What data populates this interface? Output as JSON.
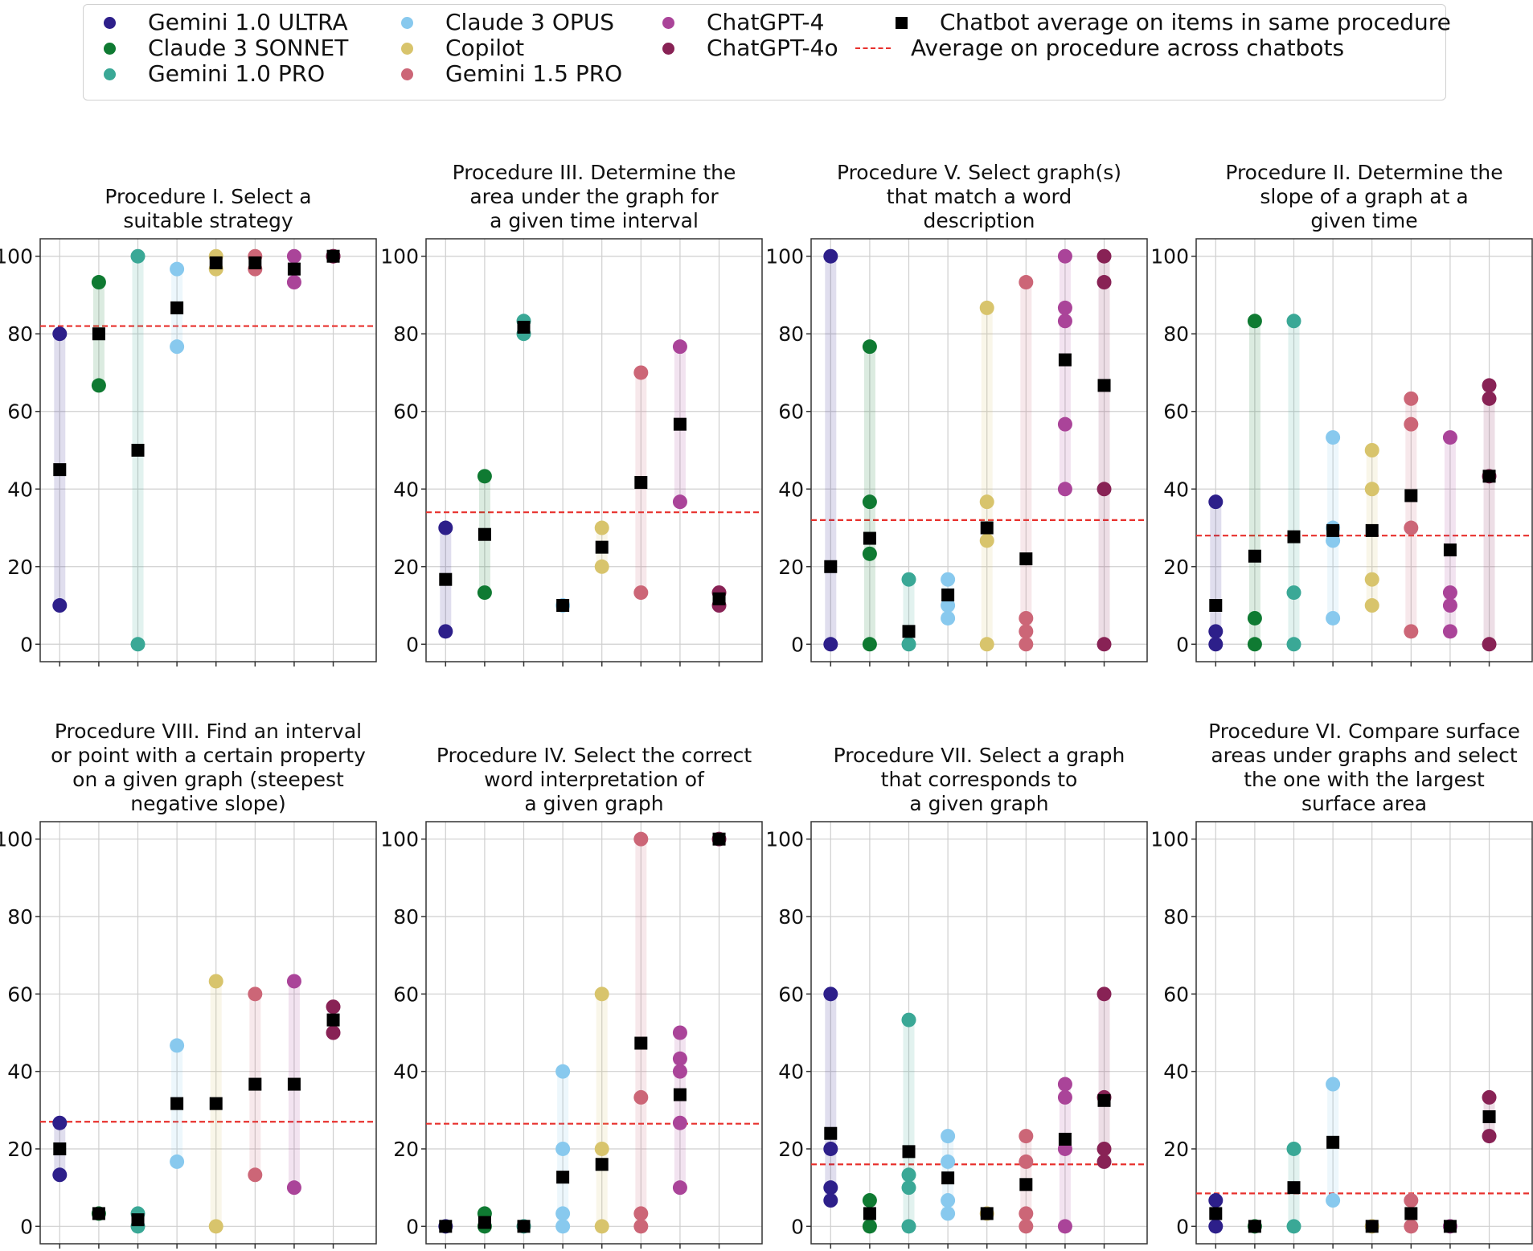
{
  "legend": {
    "series": [
      {
        "name": "Gemini 1.0 ULTRA",
        "color": "#2d1f8a"
      },
      {
        "name": "Claude 3 SONNET",
        "color": "#0f7a32"
      },
      {
        "name": "Gemini 1.0 PRO",
        "color": "#3aa896"
      },
      {
        "name": "Claude 3 OPUS",
        "color": "#88c9ee"
      },
      {
        "name": "Copilot",
        "color": "#d8c46c"
      },
      {
        "name": "Gemini 1.5 PRO",
        "color": "#cc6677"
      },
      {
        "name": "ChatGPT-4",
        "color": "#aa4499"
      },
      {
        "name": "ChatGPT-4o",
        "color": "#882255"
      }
    ],
    "average_label": "Chatbot average on items in same procedure",
    "procedure_label": "Average on procedure across chatbots",
    "procedure_color": "#e8312d"
  },
  "chart_data": [
    {
      "type": "scatter",
      "title": [
        "Procedure I. Select a",
        "suitable strategy"
      ],
      "ylim": [
        0,
        100
      ],
      "yticks": [
        0,
        20,
        40,
        60,
        80,
        100
      ],
      "procedure_average": 82,
      "series": [
        {
          "name": "Gemini 1.0 ULTRA",
          "values": [
            80,
            10
          ],
          "average": 45
        },
        {
          "name": "Claude 3 SONNET",
          "values": [
            93.3,
            66.7
          ],
          "average": 80
        },
        {
          "name": "Gemini 1.0 PRO",
          "values": [
            100,
            0
          ],
          "average": 50
        },
        {
          "name": "Claude 3 OPUS",
          "values": [
            96.7,
            76.7
          ],
          "average": 86.7
        },
        {
          "name": "Copilot",
          "values": [
            100,
            96.7
          ],
          "average": 98.3
        },
        {
          "name": "Gemini 1.5 PRO",
          "values": [
            100,
            96.7
          ],
          "average": 98.3
        },
        {
          "name": "ChatGPT-4",
          "values": [
            100,
            93.3
          ],
          "average": 96.7
        },
        {
          "name": "ChatGPT-4o",
          "values": [
            100,
            100
          ],
          "average": 100
        }
      ]
    },
    {
      "type": "scatter",
      "title": [
        "Procedure III. Determine the",
        "area under the graph for",
        "a given time interval"
      ],
      "ylim": [
        0,
        100
      ],
      "yticks": [
        0,
        20,
        40,
        60,
        80,
        100
      ],
      "procedure_average": 34,
      "series": [
        {
          "name": "Gemini 1.0 ULTRA",
          "values": [
            30,
            3.3
          ],
          "average": 16.7
        },
        {
          "name": "Claude 3 SONNET",
          "values": [
            43.3,
            13.3
          ],
          "average": 28.3
        },
        {
          "name": "Gemini 1.0 PRO",
          "values": [
            83.3,
            80
          ],
          "average": 81.7
        },
        {
          "name": "Claude 3 OPUS",
          "values": [
            10
          ],
          "average": 10
        },
        {
          "name": "Copilot",
          "values": [
            30,
            20
          ],
          "average": 25
        },
        {
          "name": "Gemini 1.5 PRO",
          "values": [
            70,
            13.3
          ],
          "average": 41.7
        },
        {
          "name": "ChatGPT-4",
          "values": [
            76.7,
            36.7
          ],
          "average": 56.7
        },
        {
          "name": "ChatGPT-4o",
          "values": [
            13.3,
            10
          ],
          "average": 11.7
        }
      ]
    },
    {
      "type": "scatter",
      "title": [
        "Procedure V. Select graph(s)",
        "that match a word",
        "description"
      ],
      "ylim": [
        0,
        100
      ],
      "yticks": [
        0,
        20,
        40,
        60,
        80,
        100
      ],
      "procedure_average": 32,
      "series": [
        {
          "name": "Gemini 1.0 ULTRA",
          "values": [
            100,
            0
          ],
          "average": 20
        },
        {
          "name": "Claude 3 SONNET",
          "values": [
            76.7,
            36.7,
            23.3,
            0
          ],
          "average": 27.3
        },
        {
          "name": "Gemini 1.0 PRO",
          "values": [
            16.7,
            0
          ],
          "average": 3.3
        },
        {
          "name": "Claude 3 OPUS",
          "values": [
            16.7,
            10,
            6.7
          ],
          "average": 12.7
        },
        {
          "name": "Copilot",
          "values": [
            86.7,
            36.7,
            26.7,
            0
          ],
          "average": 30
        },
        {
          "name": "Gemini 1.5 PRO",
          "values": [
            93.3,
            6.7,
            3.3,
            0
          ],
          "average": 22
        },
        {
          "name": "ChatGPT-4",
          "values": [
            100,
            86.7,
            83.3,
            56.7,
            40
          ],
          "average": 73.3
        },
        {
          "name": "ChatGPT-4o",
          "values": [
            100,
            93.3,
            40,
            0
          ],
          "average": 66.7
        }
      ]
    },
    {
      "type": "scatter",
      "title": [
        "Procedure II. Determine the",
        "slope of a graph at a",
        "given time"
      ],
      "ylim": [
        0,
        100
      ],
      "yticks": [
        0,
        20,
        40,
        60,
        80,
        100
      ],
      "procedure_average": 28,
      "series": [
        {
          "name": "Gemini 1.0 ULTRA",
          "values": [
            36.7,
            3.3,
            0
          ],
          "average": 10
        },
        {
          "name": "Claude 3 SONNET",
          "values": [
            83.3,
            6.7,
            0
          ],
          "average": 22.7
        },
        {
          "name": "Gemini 1.0 PRO",
          "values": [
            83.3,
            13.3,
            0
          ],
          "average": 27.7
        },
        {
          "name": "Claude 3 OPUS",
          "values": [
            53.3,
            30,
            26.7,
            6.7
          ],
          "average": 29.3
        },
        {
          "name": "Copilot",
          "values": [
            50,
            40,
            16.7,
            10
          ],
          "average": 29.3
        },
        {
          "name": "Gemini 1.5 PRO",
          "values": [
            63.3,
            56.7,
            30,
            3.3
          ],
          "average": 38.3
        },
        {
          "name": "ChatGPT-4",
          "values": [
            53.3,
            13.3,
            10,
            3.3
          ],
          "average": 24.3
        },
        {
          "name": "ChatGPT-4o",
          "values": [
            66.7,
            63.3,
            43.3,
            0
          ],
          "average": 43.3
        }
      ]
    },
    {
      "type": "scatter",
      "title": [
        "Procedure VIII. Find an interval",
        "or point with a certain property",
        "on a given graph (steepest",
        "negative slope)"
      ],
      "ylim": [
        0,
        100
      ],
      "yticks": [
        0,
        20,
        40,
        60,
        80,
        100
      ],
      "procedure_average": 27,
      "series": [
        {
          "name": "Gemini 1.0 ULTRA",
          "values": [
            26.7,
            13.3
          ],
          "average": 20
        },
        {
          "name": "Claude 3 SONNET",
          "values": [
            3.3
          ],
          "average": 3.3
        },
        {
          "name": "Gemini 1.0 PRO",
          "values": [
            3.3,
            0
          ],
          "average": 1.7
        },
        {
          "name": "Claude 3 OPUS",
          "values": [
            46.7,
            16.7
          ],
          "average": 31.7
        },
        {
          "name": "Copilot",
          "values": [
            63.3,
            0
          ],
          "average": 31.7
        },
        {
          "name": "Gemini 1.5 PRO",
          "values": [
            60,
            13.3
          ],
          "average": 36.7
        },
        {
          "name": "ChatGPT-4",
          "values": [
            63.3,
            10
          ],
          "average": 36.7
        },
        {
          "name": "ChatGPT-4o",
          "values": [
            56.7,
            50
          ],
          "average": 53.3
        }
      ]
    },
    {
      "type": "scatter",
      "title": [
        "Procedure IV. Select the correct",
        "word interpretation of",
        "a given graph"
      ],
      "ylim": [
        0,
        100
      ],
      "yticks": [
        0,
        20,
        40,
        60,
        80,
        100
      ],
      "procedure_average": 26.5,
      "series": [
        {
          "name": "Gemini 1.0 ULTRA",
          "values": [
            0
          ],
          "average": 0
        },
        {
          "name": "Claude 3 SONNET",
          "values": [
            3.3,
            0
          ],
          "average": 1
        },
        {
          "name": "Gemini 1.0 PRO",
          "values": [
            0
          ],
          "average": 0
        },
        {
          "name": "Claude 3 OPUS",
          "values": [
            40,
            20,
            3.3,
            0
          ],
          "average": 12.7
        },
        {
          "name": "Copilot",
          "values": [
            60,
            20,
            0
          ],
          "average": 16
        },
        {
          "name": "Gemini 1.5 PRO",
          "values": [
            100,
            33.3,
            3.3,
            0
          ],
          "average": 47.3
        },
        {
          "name": "ChatGPT-4",
          "values": [
            50,
            43.3,
            40,
            26.7,
            10
          ],
          "average": 34
        },
        {
          "name": "ChatGPT-4o",
          "values": [
            100
          ],
          "average": 100
        }
      ]
    },
    {
      "type": "scatter",
      "title": [
        "Procedure VII. Select a graph",
        "that corresponds to",
        "a given graph"
      ],
      "ylim": [
        0,
        100
      ],
      "yticks": [
        0,
        20,
        40,
        60,
        80,
        100
      ],
      "procedure_average": 16,
      "series": [
        {
          "name": "Gemini 1.0 ULTRA",
          "values": [
            60,
            20,
            10,
            6.7
          ],
          "average": 24
        },
        {
          "name": "Claude 3 SONNET",
          "values": [
            6.7,
            0
          ],
          "average": 3.3
        },
        {
          "name": "Gemini 1.0 PRO",
          "values": [
            53.3,
            13.3,
            10,
            0
          ],
          "average": 19.3
        },
        {
          "name": "Claude 3 OPUS",
          "values": [
            23.3,
            16.7,
            6.7,
            3.3
          ],
          "average": 12.5
        },
        {
          "name": "Copilot",
          "values": [
            3.3
          ],
          "average": 3.3
        },
        {
          "name": "Gemini 1.5 PRO",
          "values": [
            23.3,
            16.7,
            3.3,
            0
          ],
          "average": 10.8
        },
        {
          "name": "ChatGPT-4",
          "values": [
            36.7,
            33.3,
            20,
            0
          ],
          "average": 22.5
        },
        {
          "name": "ChatGPT-4o",
          "values": [
            60,
            33.3,
            20,
            16.7
          ],
          "average": 32.5
        }
      ]
    },
    {
      "type": "scatter",
      "title": [
        "Procedure VI. Compare surface",
        "areas under graphs and select",
        "the one with the largest",
        "surface area"
      ],
      "ylim": [
        0,
        100
      ],
      "yticks": [
        0,
        20,
        40,
        60,
        80,
        100
      ],
      "procedure_average": 8.5,
      "series": [
        {
          "name": "Gemini 1.0 ULTRA",
          "values": [
            6.7,
            0
          ],
          "average": 3.3
        },
        {
          "name": "Claude 3 SONNET",
          "values": [
            0
          ],
          "average": 0
        },
        {
          "name": "Gemini 1.0 PRO",
          "values": [
            20,
            0
          ],
          "average": 10
        },
        {
          "name": "Claude 3 OPUS",
          "values": [
            36.7,
            6.7
          ],
          "average": 21.7
        },
        {
          "name": "Copilot",
          "values": [
            0
          ],
          "average": 0
        },
        {
          "name": "Gemini 1.5 PRO",
          "values": [
            6.7,
            0
          ],
          "average": 3.3
        },
        {
          "name": "ChatGPT-4",
          "values": [
            0
          ],
          "average": 0
        },
        {
          "name": "ChatGPT-4o",
          "values": [
            33.3,
            23.3
          ],
          "average": 28.3
        }
      ]
    }
  ]
}
